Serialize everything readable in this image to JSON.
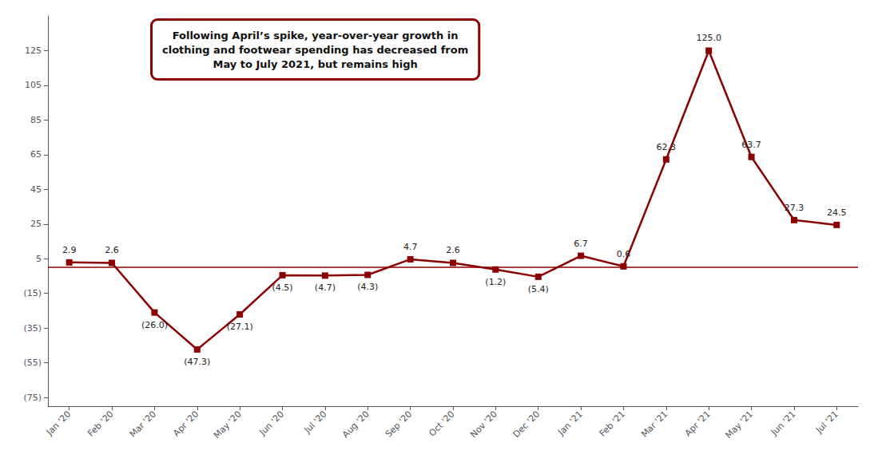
{
  "chart_data": {
    "type": "line",
    "categories": [
      "Jan '20",
      "Feb '20",
      "Mar '20",
      "Apr '20",
      "May '20",
      "Jun '20",
      "Jul '20",
      "Aug '20",
      "Sep '20",
      "Oct '20",
      "Nov '20",
      "Dec '20",
      "Jan '21",
      "Feb '21",
      "Mar '21",
      "Apr '21",
      "May '21",
      "Jun '21",
      "Jul '21"
    ],
    "values": [
      2.9,
      2.6,
      -26.0,
      -47.3,
      -27.1,
      -4.5,
      -4.7,
      -4.3,
      4.7,
      2.6,
      -1.2,
      -5.4,
      6.7,
      0.6,
      62.3,
      125.0,
      63.7,
      27.3,
      24.5
    ],
    "value_labels": [
      "2.9",
      "2.6",
      "(26.0)",
      "(47.3)",
      "(27.1)",
      "(4.5)",
      "(4.7)",
      "(4.3)",
      "4.7",
      "2.6",
      "(1.2)",
      "(5.4)",
      "6.7",
      "0.6",
      "62.3",
      "125.0",
      "63.7",
      "27.3",
      "24.5"
    ],
    "data_labels": true,
    "color": "#8B0000",
    "marker": "square",
    "annotation": "Following April’s spike, year-over-year growth in\nclothing and footwear spending has decreased from\nMay to July 2021, but remains high",
    "ylim": [
      -80,
      145
    ],
    "yticks": [
      {
        "value": -75,
        "label": "(75)"
      },
      {
        "value": -55,
        "label": "(55)"
      },
      {
        "value": -35,
        "label": "(35)"
      },
      {
        "value": -15,
        "label": "(15)"
      },
      5,
      25,
      45,
      65,
      85,
      105,
      125
    ],
    "grid": false
  }
}
